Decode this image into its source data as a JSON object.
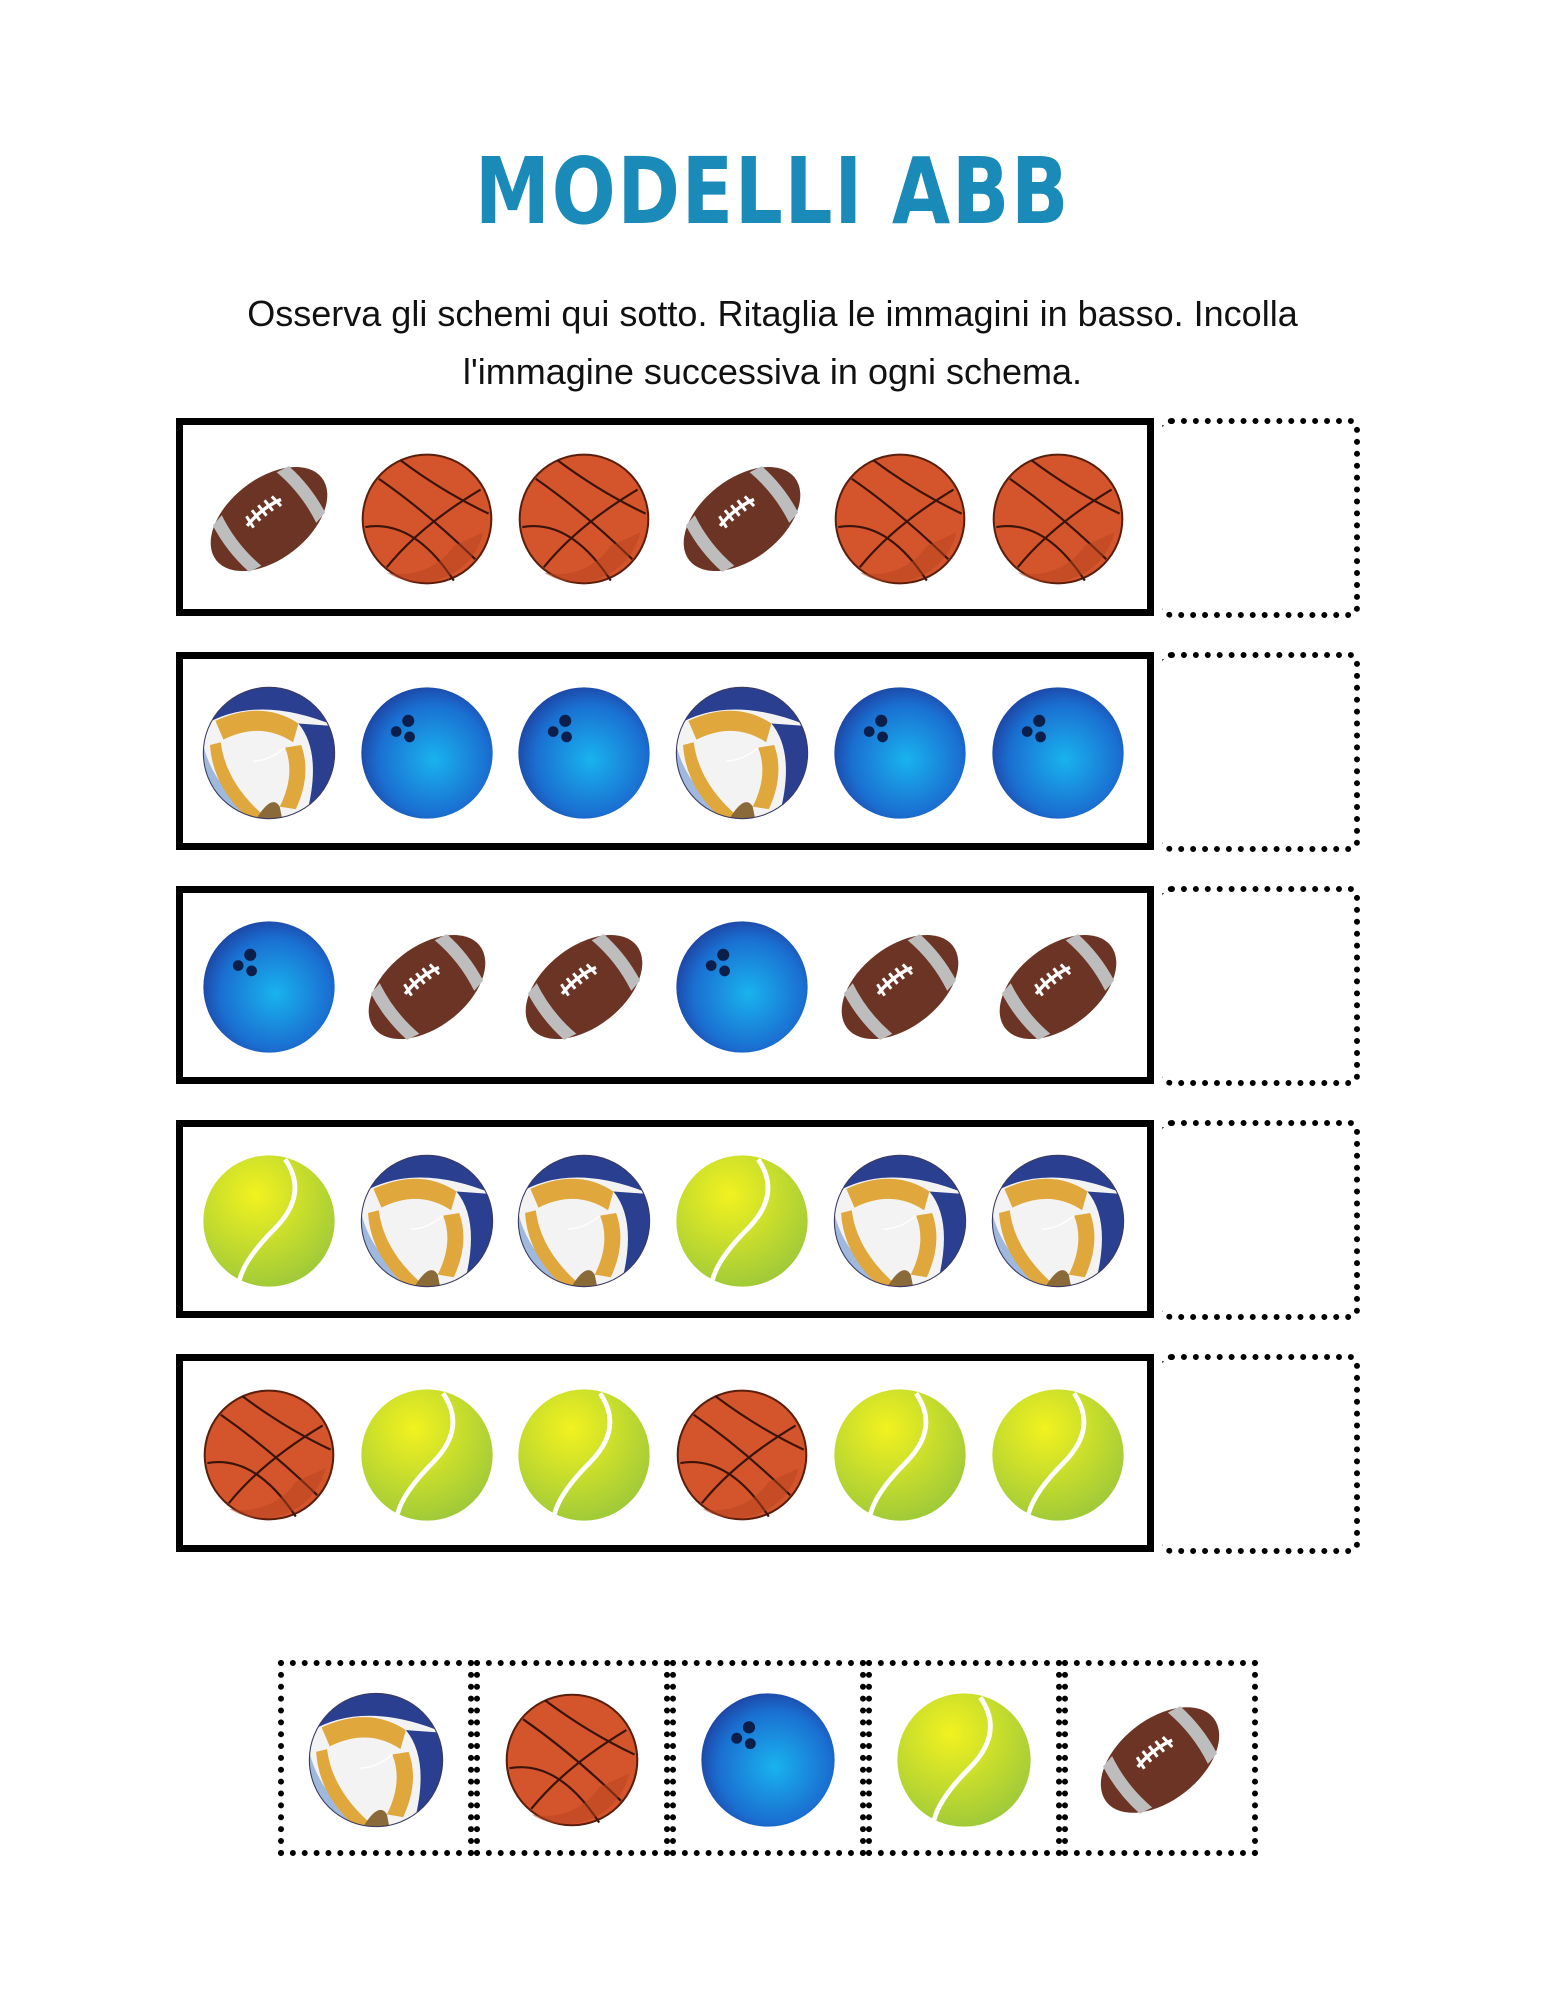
{
  "title": "MODELLI ABB",
  "instructions": "Osserva gli schemi qui sotto. Ritaglia le immagini in basso. Incolla l'immagine successiva in ogni schema.",
  "patterns": [
    {
      "items": [
        "football-icon",
        "basketball-icon",
        "basketball-icon",
        "football-icon",
        "basketball-icon",
        "basketball-icon"
      ]
    },
    {
      "items": [
        "volleyball-icon",
        "bowling-ball-icon",
        "bowling-ball-icon",
        "volleyball-icon",
        "bowling-ball-icon",
        "bowling-ball-icon"
      ]
    },
    {
      "items": [
        "bowling-ball-icon",
        "football-icon",
        "football-icon",
        "bowling-ball-icon",
        "football-icon",
        "football-icon"
      ]
    },
    {
      "items": [
        "tennis-ball-icon",
        "volleyball-icon",
        "volleyball-icon",
        "tennis-ball-icon",
        "volleyball-icon",
        "volleyball-icon"
      ]
    },
    {
      "items": [
        "basketball-icon",
        "tennis-ball-icon",
        "tennis-ball-icon",
        "basketball-icon",
        "tennis-ball-icon",
        "tennis-ball-icon"
      ]
    }
  ],
  "cutouts": [
    "volleyball-icon",
    "basketball-icon",
    "bowling-ball-icon",
    "tennis-ball-icon",
    "football-icon"
  ],
  "colors": {
    "title": "#1a8ab9",
    "basketball": "#d4552b",
    "football": "#6b3424",
    "bowling_ball": "#1a6fd1",
    "tennis_ball": "#d9e62a",
    "volleyball_blue": "#2a3f8f",
    "volleyball_gold": "#e0a83c"
  }
}
